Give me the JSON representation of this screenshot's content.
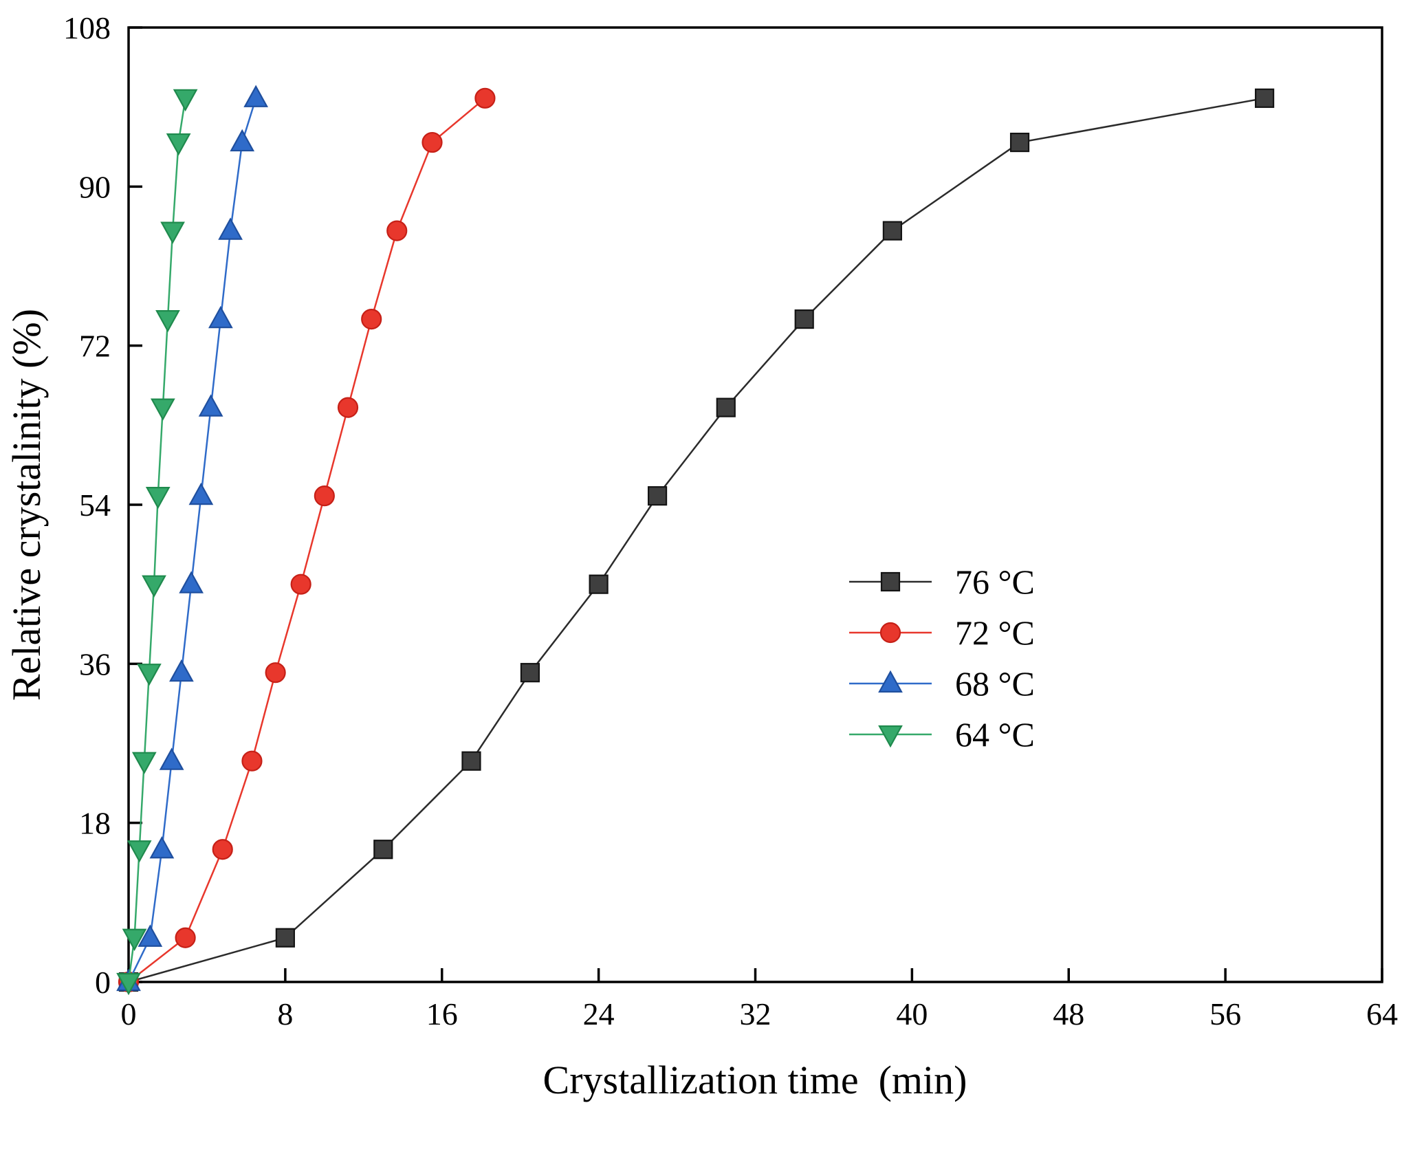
{
  "chart_data": {
    "type": "line",
    "title": "",
    "xlabel": "Crystallization time  (min)",
    "ylabel": "Relative crystalinity (%)",
    "xlim": [
      0,
      64
    ],
    "ylim": [
      0,
      108
    ],
    "xticks": [
      0,
      8,
      16,
      24,
      32,
      40,
      48,
      56,
      64
    ],
    "yticks": [
      0,
      18,
      36,
      54,
      72,
      90,
      108
    ],
    "grid": false,
    "legend_position": "inside right, lower middle",
    "frame": true,
    "tick_direction": "in",
    "series": [
      {
        "name": "76 °C",
        "marker": "square",
        "color": "#3f3f3f",
        "edge_color": "#141414",
        "line_color": "#2b2b2b",
        "x": [
          0,
          8,
          13,
          17.5,
          20.5,
          24,
          27,
          30.5,
          34.5,
          39,
          45.5,
          58
        ],
        "y": [
          0,
          5,
          15,
          25,
          35,
          45,
          55,
          65,
          75,
          85,
          95,
          100
        ]
      },
      {
        "name": "72 °C",
        "marker": "circle",
        "color": "#e8372c",
        "edge_color": "#c62017",
        "line_color": "#e8372c",
        "x": [
          0,
          2.9,
          4.8,
          6.3,
          7.5,
          8.8,
          10,
          11.2,
          12.4,
          13.7,
          15.5,
          18.2
        ],
        "y": [
          0,
          5,
          15,
          25,
          35,
          45,
          55,
          65,
          75,
          85,
          95,
          100
        ]
      },
      {
        "name": "68 °C",
        "marker": "triangle-up",
        "color": "#2f6bc9",
        "edge_color": "#1f4f9e",
        "line_color": "#2f6bc9",
        "x": [
          0,
          1.1,
          1.7,
          2.2,
          2.7,
          3.2,
          3.7,
          4.2,
          4.7,
          5.2,
          5.8,
          6.5
        ],
        "y": [
          0,
          5,
          15,
          25,
          35,
          45,
          55,
          65,
          75,
          85,
          95,
          100
        ]
      },
      {
        "name": "64 °C",
        "marker": "triangle-down",
        "color": "#35a96a",
        "edge_color": "#1f8a4d",
        "line_color": "#35a96a",
        "x": [
          0,
          0.3,
          0.55,
          0.8,
          1.05,
          1.3,
          1.5,
          1.75,
          2.0,
          2.25,
          2.55,
          2.9
        ],
        "y": [
          0,
          5,
          15,
          25,
          35,
          45,
          55,
          65,
          75,
          85,
          95,
          100
        ]
      }
    ]
  }
}
